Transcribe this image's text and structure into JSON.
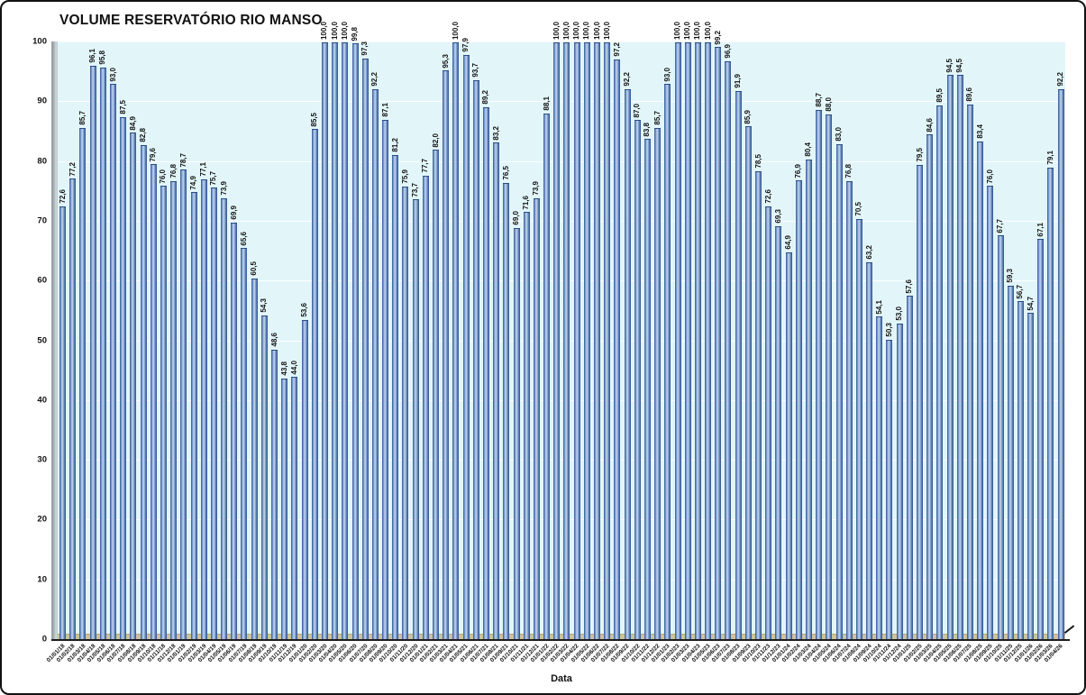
{
  "title": "VOLUME RESERVATÓRIO RIO MANSO",
  "chart_data": {
    "type": "bar",
    "title": "VOLUME RESERVATÓRIO RIO MANSO",
    "xlabel": "Data",
    "ylabel": "",
    "ylim": [
      0,
      100
    ],
    "yticks": [
      0,
      10,
      20,
      30,
      40,
      50,
      60,
      70,
      80,
      90,
      100
    ],
    "grid": true,
    "legend": "none",
    "bar_color": "#5b84ba",
    "plot_bg": "#e2f6fa",
    "categories": [
      "01/01/18",
      "01/02/18",
      "01/03/18",
      "01/04/18",
      "01/05/18",
      "01/06/18",
      "01/07/18",
      "01/08/18",
      "01/09/18",
      "01/10/18",
      "01/11/18",
      "01/12/18",
      "01/01/19",
      "01/02/19",
      "01/03/19",
      "01/04/19",
      "01/05/19",
      "01/06/19",
      "01/07/19",
      "01/08/19",
      "01/09/19",
      "01/10/19",
      "01/11/19",
      "01/12/19",
      "01/01/20",
      "01/02/20",
      "01/03/20",
      "01/04/20",
      "01/05/20",
      "01/06/20",
      "01/07/20",
      "01/08/20",
      "01/09/20",
      "01/10/20",
      "01/11/20",
      "01/12/20",
      "01/01/21",
      "01/02/21",
      "01/03/21",
      "01/04/21",
      "01/05/21",
      "01/06/21",
      "01/07/21",
      "01/08/21",
      "01/09/21",
      "01/10/21",
      "01/11/21",
      "01/12/21",
      "01/01/22",
      "01/02/22",
      "01/03/22",
      "01/04/22",
      "01/05/22",
      "01/06/22",
      "01/07/22",
      "01/08/22",
      "01/09/22",
      "01/10/22",
      "01/11/22",
      "01/12/22",
      "01/01/23",
      "01/02/23",
      "01/03/23",
      "01/04/23",
      "01/05/23",
      "01/06/23",
      "01/07/23",
      "01/08/23",
      "01/09/23",
      "01/10/23",
      "01/11/23",
      "01/12/23",
      "01/01/24",
      "01/02/24",
      "01/03/24",
      "01/04/24",
      "01/05/24",
      "01/06/24",
      "01/07/24",
      "01/08/24",
      "01/09/24",
      "01/10/24",
      "01/11/24",
      "01/12/24",
      "01/01/25",
      "01/02/25",
      "01/03/25",
      "01/04/25",
      "01/05/25",
      "01/06/25",
      "01/07/25",
      "01/08/25",
      "01/09/25",
      "01/10/25",
      "01/11/25",
      "01/12/25",
      "01/01/26",
      "01/02/26",
      "01/03/26",
      "01/04/26"
    ],
    "values": [
      72.6,
      77.2,
      85.7,
      96.1,
      95.8,
      93.0,
      87.5,
      84.9,
      82.8,
      79.6,
      76.0,
      76.8,
      78.7,
      74.9,
      77.1,
      75.7,
      73.9,
      69.9,
      65.6,
      60.5,
      54.3,
      48.6,
      43.8,
      44.0,
      53.6,
      85.5,
      100.0,
      100.0,
      100.0,
      99.8,
      97.3,
      92.2,
      87.1,
      81.2,
      75.9,
      73.7,
      77.7,
      82.0,
      95.3,
      100.0,
      97.9,
      93.7,
      89.2,
      83.2,
      76.5,
      69.0,
      71.6,
      73.9,
      88.1,
      100.0,
      100.0,
      100.0,
      100.0,
      100.0,
      100.0,
      97.2,
      92.2,
      87.0,
      83.8,
      85.7,
      93.0,
      100.0,
      100.0,
      100.0,
      100.0,
      99.2,
      96.9,
      91.9,
      85.9,
      78.5,
      72.6,
      69.3,
      64.9,
      76.9,
      80.4,
      88.7,
      88.0,
      83.0,
      76.8,
      70.5,
      63.2,
      54.1,
      50.3,
      53.0,
      57.6,
      79.5,
      84.6,
      89.5,
      94.5,
      94.5,
      89.6,
      83.4,
      76.0,
      67.7,
      59.3,
      56.7,
      54.7,
      67.1,
      79.1,
      92.2
    ],
    "value_labels": [
      "72,6",
      "77,2",
      "85,7",
      "96,1",
      "95,8",
      "93,0",
      "87,5",
      "84,9",
      "82,8",
      "79,6",
      "76,0",
      "76,8",
      "78,7",
      "74,9",
      "77,1",
      "75,7",
      "73,9",
      "69,9",
      "65,6",
      "60,5",
      "54,3",
      "48,6",
      "43,8",
      "44,0",
      "53,6",
      "85,5",
      "100,0",
      "100,0",
      "100,0",
      "99,8",
      "97,3",
      "92,2",
      "87,1",
      "81,2",
      "75,9",
      "73,7",
      "77,7",
      "82,0",
      "95,3",
      "100,0",
      "97,9",
      "93,7",
      "89,2",
      "83,2",
      "76,5",
      "69,0",
      "71,6",
      "73,9",
      "88,1",
      "100,0",
      "100,0",
      "100,0",
      "100,0",
      "100,0",
      "100,0",
      "97,2",
      "92,2",
      "87,0",
      "83,8",
      "85,7",
      "93,0",
      "100,0",
      "100,0",
      "100,0",
      "100,0",
      "99,2",
      "96,9",
      "91,9",
      "85,9",
      "78,5",
      "72,6",
      "69,3",
      "64,9",
      "76,9",
      "80,4",
      "88,7",
      "88,0",
      "83,0",
      "76,8",
      "70,5",
      "63,2",
      "54,1",
      "50,3",
      "53,0",
      "57,6",
      "79,5",
      "84,6",
      "89,5",
      "94,5",
      "94,5",
      "89,6",
      "83,4",
      "76,0",
      "67,7",
      "59,3",
      "56,7",
      "54,7",
      "67,1",
      "79,1",
      "92,2"
    ]
  }
}
